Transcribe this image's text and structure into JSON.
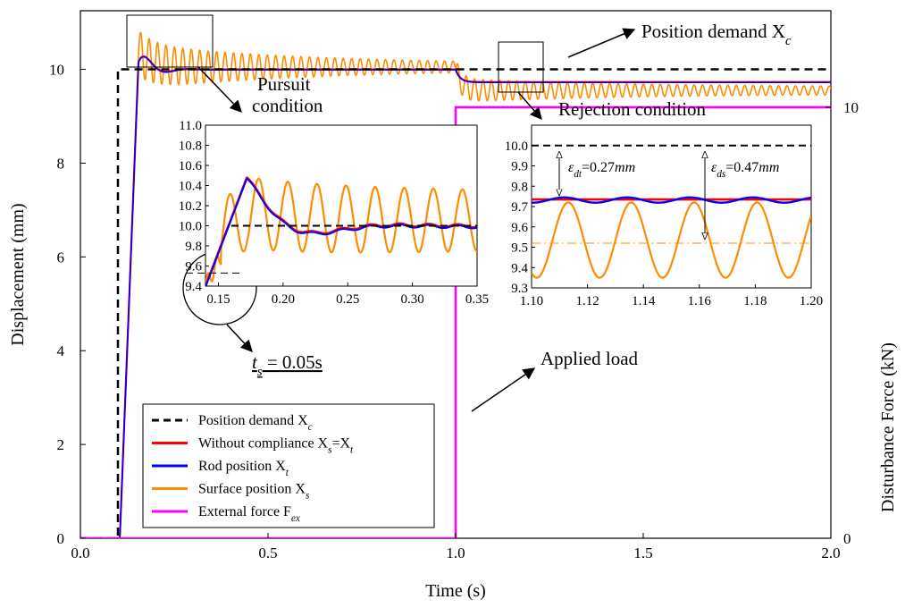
{
  "chart_data": {
    "type": "line",
    "xlabel": "Time (s)",
    "ylabel": "Displacement  (mm)",
    "y2label": "Disturbance Force  (kN)",
    "xlim": [
      0.0,
      2.0
    ],
    "ylim": [
      0,
      11.25
    ],
    "y2lim": [
      0,
      12.24
    ],
    "x_ticks": [
      "0.0",
      "0.5",
      "1.0",
      "1.5",
      "2.0"
    ],
    "y_ticks": [
      "0",
      "2",
      "4",
      "6",
      "8",
      "10"
    ],
    "y2_ticks": [
      "0",
      "10"
    ],
    "grid": false,
    "legend_position": "bottom-left",
    "colors": {
      "demand": "#000000",
      "without_compliance": "#ff0000",
      "rod": "#0000ff",
      "surface": "#ff8c00",
      "force": "#ff00ff"
    },
    "series": [
      {
        "name": "Position demand X",
        "sub": "c",
        "color": "#000000",
        "dash": true,
        "x": [
          0.0,
          0.1,
          0.1,
          2.0
        ],
        "y": [
          0,
          0,
          10,
          10
        ]
      },
      {
        "name": "Without compliance X",
        "sub": "s",
        "extra": "=X",
        "extra_sub": "t",
        "color": "#ff0000",
        "x": [
          0.0,
          0.1,
          0.14,
          0.16,
          0.17,
          0.2,
          0.25,
          1.0,
          1.02,
          2.0
        ],
        "y": [
          0,
          0,
          9.5,
          10.45,
          10.48,
          10.2,
          10.0,
          10.0,
          9.73,
          9.73
        ]
      },
      {
        "name": "Rod position X",
        "sub": "t",
        "color": "#0000ff",
        "x": [
          0.0,
          0.1,
          0.14,
          0.16,
          0.17,
          0.2,
          0.25,
          1.0,
          1.02,
          2.0
        ],
        "y": [
          0,
          0,
          9.5,
          10.45,
          10.47,
          10.2,
          10.0,
          10.0,
          9.73,
          9.73
        ]
      },
      {
        "name": "Surface position X",
        "sub": "s",
        "color": "#ff8c00",
        "x": [
          0.0,
          0.1,
          0.14,
          0.165,
          0.18,
          0.19,
          0.21,
          0.23,
          0.25,
          0.3,
          0.35,
          0.5,
          1.0,
          1.02,
          1.1,
          1.2,
          1.5,
          2.0
        ],
        "y": [
          0,
          0,
          9.5,
          10.82,
          9.9,
          10.75,
          9.72,
          10.5,
          9.7,
          10.4,
          10.2,
          10.1,
          10.02,
          9.52,
          9.35,
          9.72,
          9.6,
          9.55
        ]
      },
      {
        "name": "External force F",
        "sub": "ex",
        "color": "#ff00ff",
        "axis": "right",
        "x": [
          0.0,
          1.0,
          1.0,
          2.0
        ],
        "y": [
          0,
          0,
          10,
          10
        ]
      }
    ],
    "insets": [
      {
        "name": "pursuit",
        "xlim": [
          0.14,
          0.35
        ],
        "ylim": [
          9.4,
          11.0
        ],
        "x_ticks": [
          "0.15",
          "0.20",
          "0.25",
          "0.30",
          "0.35"
        ],
        "y_ticks": [
          "9.4",
          "9.6",
          "9.8",
          "10.0",
          "10.2",
          "10.4",
          "10.6",
          "10.8",
          "11.0"
        ]
      },
      {
        "name": "rejection",
        "xlim": [
          1.1,
          1.2
        ],
        "ylim": [
          9.3,
          10.1
        ],
        "x_ticks": [
          "1.10",
          "1.12",
          "1.14",
          "1.16",
          "1.18",
          "1.20"
        ],
        "y_ticks": [
          "9.3",
          "9.4",
          "9.5",
          "9.6",
          "9.7",
          "9.8",
          "9.9",
          "10.0"
        ]
      }
    ],
    "annotations": {
      "demand": {
        "text": "Position demand X",
        "sub": "c"
      },
      "pursuit_line1": "Pursuit",
      "pursuit_line2": "condition",
      "rejection": "Rejection condition",
      "applied_load": "Applied load",
      "ts": {
        "var": "t",
        "sub": "s",
        "rest": " = 0.05s"
      },
      "edt": {
        "sym": "ε",
        "sub": "dt",
        "rest": "=0.27",
        "unit": "mm"
      },
      "eds": {
        "sym": "ε",
        "sub": "ds",
        "rest": "=0.47",
        "unit": "mm"
      }
    }
  }
}
